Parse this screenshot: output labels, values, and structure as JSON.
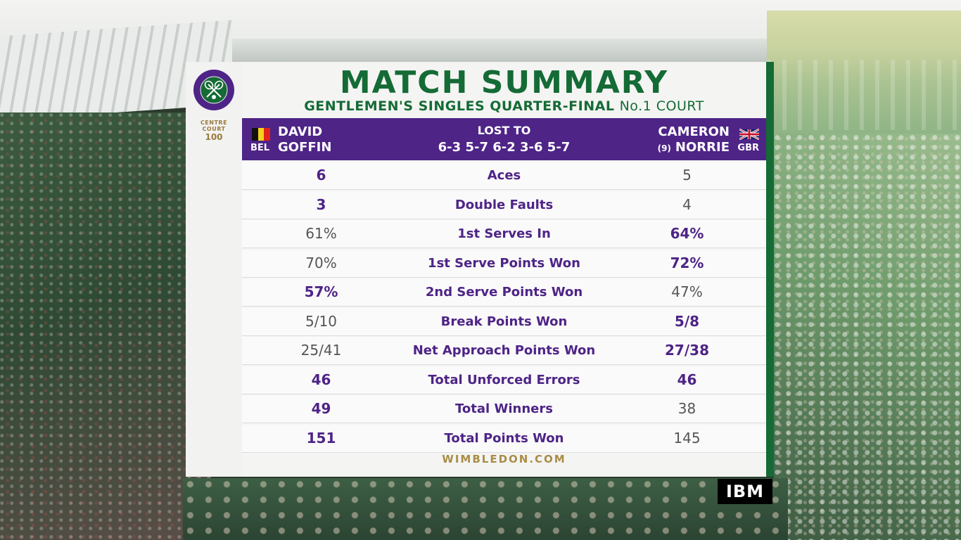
{
  "title": "MATCH SUMMARY",
  "subtitle": {
    "event": "GENTLEMEN'S SINGLES QUARTER-FINAL",
    "court": "No.1 COURT"
  },
  "logos": {
    "wimbledon_ring_text": "THE CHAMPIONSHIPS WIMBLEDON",
    "centre_court_line1": "CENTRE",
    "centre_court_line2": "COURT",
    "centre_court_number": "100"
  },
  "player1": {
    "first_name": "DAVID",
    "last_name": "GOFFIN",
    "country": "BEL",
    "flag_colors": [
      "#111111",
      "#f5d31b",
      "#e2231a"
    ]
  },
  "result": {
    "label": "LOST TO",
    "score": "6-3 5-7 6-2 3-6 5-7"
  },
  "player2": {
    "first_name": "CAMERON",
    "last_name": "NORRIE",
    "seed": "(9)",
    "country": "GBR"
  },
  "stats": [
    {
      "label": "Aces",
      "p1": "6",
      "p2": "5",
      "p1_bold": true,
      "p2_bold": false
    },
    {
      "label": "Double Faults",
      "p1": "3",
      "p2": "4",
      "p1_bold": true,
      "p2_bold": false
    },
    {
      "label": "1st Serves In",
      "p1": "61%",
      "p2": "64%",
      "p1_bold": false,
      "p2_bold": true
    },
    {
      "label": "1st Serve Points Won",
      "p1": "70%",
      "p2": "72%",
      "p1_bold": false,
      "p2_bold": true
    },
    {
      "label": "2nd Serve Points Won",
      "p1": "57%",
      "p2": "47%",
      "p1_bold": true,
      "p2_bold": false
    },
    {
      "label": "Break Points Won",
      "p1": "5/10",
      "p2": "5/8",
      "p1_bold": false,
      "p2_bold": true
    },
    {
      "label": "Net Approach Points Won",
      "p1": "25/41",
      "p2": "27/38",
      "p1_bold": false,
      "p2_bold": true
    },
    {
      "label": "Total Unforced Errors",
      "p1": "46",
      "p2": "46",
      "p1_bold": true,
      "p2_bold": true
    },
    {
      "label": "Total Winners",
      "p1": "49",
      "p2": "38",
      "p1_bold": true,
      "p2_bold": false
    },
    {
      "label": "Total Points Won",
      "p1": "151",
      "p2": "145",
      "p1_bold": true,
      "p2_bold": false
    }
  ],
  "footer": "WIMBLEDON.COM",
  "sponsor": "IBM",
  "colors": {
    "purple": "#4e2487",
    "green": "#156b35",
    "gold": "#a98d46"
  }
}
